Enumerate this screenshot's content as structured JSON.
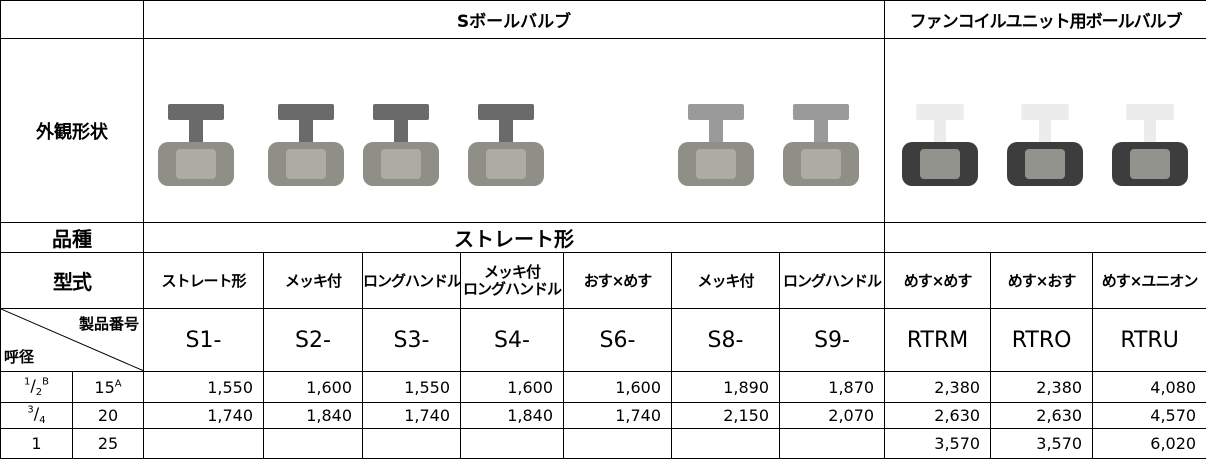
{
  "header": {
    "group1": "Sボールバルブ",
    "group2": "ファンコイルユニット用ボールバルブ"
  },
  "appearance_label": "外観形状",
  "variety": {
    "label": "品種",
    "value": "ストレート形"
  },
  "model": {
    "label": "型式",
    "values": [
      [
        "ストレート形"
      ],
      [
        "メッキ付"
      ],
      [
        "ロングハンドル"
      ],
      [
        "メッキ付",
        "ロングハンドル"
      ],
      [
        "おす×めす"
      ],
      [
        "メッキ付"
      ],
      [
        "ロングハンドル"
      ],
      [
        "めす×めす"
      ],
      [
        "めす×おす"
      ],
      [
        "めす×ユニオン"
      ]
    ]
  },
  "product_no": {
    "label": "製品番号",
    "size_label": "呼径",
    "values": [
      "S1-",
      "S2-",
      "S3-",
      "S4-",
      "S6-",
      "S8-",
      "S9-",
      "RTRM",
      "RTRO",
      "RTRU"
    ]
  },
  "rows": [
    {
      "size_b": {
        "num": "1",
        "den": "2",
        "unit": "B"
      },
      "size_a": {
        "value": "15",
        "unit": "A"
      },
      "prices": [
        "1,550",
        "1,600",
        "1,550",
        "1,600",
        "1,600",
        "1,890",
        "1,870",
        "2,380",
        "2,380",
        "4,080"
      ]
    },
    {
      "size_b": {
        "num": "3",
        "den": "4"
      },
      "size_a": {
        "value": "20"
      },
      "prices": [
        "1,740",
        "1,840",
        "1,740",
        "1,840",
        "1,740",
        "2,150",
        "2,070",
        "2,630",
        "2,630",
        "4,570"
      ]
    },
    {
      "size_b": {
        "value": "1"
      },
      "size_a": {
        "value": "25"
      },
      "prices": [
        null,
        null,
        null,
        null,
        null,
        null,
        null,
        "3,570",
        "3,570",
        "6,020"
      ]
    }
  ]
}
